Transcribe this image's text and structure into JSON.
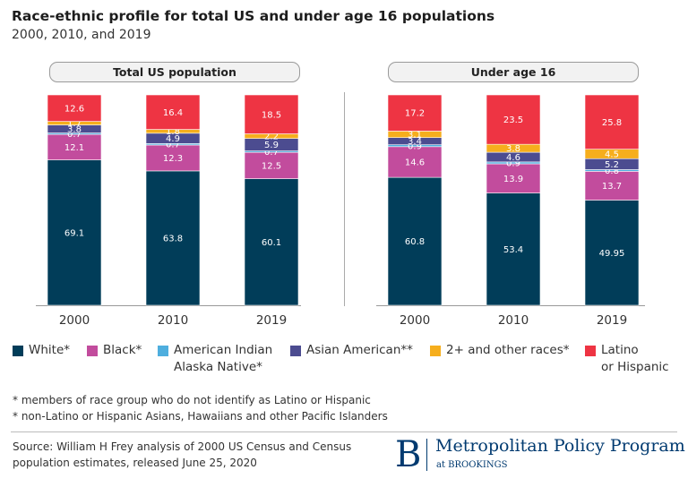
{
  "header": {
    "title": "Race-ethnic profile for total US and under age 16 populations",
    "subtitle": "2000, 2010, and 2019"
  },
  "chart_data": {
    "type": "bar",
    "stacked": true,
    "panels": [
      {
        "label": "Total US population",
        "categories": [
          "2000",
          "2010",
          "2019"
        ],
        "series": [
          {
            "name": "White*",
            "values": [
              69.1,
              63.8,
              60.1
            ]
          },
          {
            "name": "Black*",
            "values": [
              12.1,
              12.3,
              12.5
            ]
          },
          {
            "name": "American Indian Alaska Native*",
            "values": [
              0.7,
              0.7,
              0.7
            ]
          },
          {
            "name": "Asian American**",
            "values": [
              3.8,
              4.9,
              5.9
            ]
          },
          {
            "name": "2+ and other races*",
            "values": [
              1.7,
              1.8,
              2.2
            ]
          },
          {
            "name": "Latino or Hispanic",
            "values": [
              12.6,
              16.4,
              18.5
            ]
          }
        ]
      },
      {
        "label": "Under age 16",
        "categories": [
          "2000",
          "2010",
          "2019"
        ],
        "series": [
          {
            "name": "White*",
            "values": [
              60.8,
              53.4,
              49.95
            ]
          },
          {
            "name": "Black*",
            "values": [
              14.6,
              13.9,
              13.7
            ]
          },
          {
            "name": "American Indian Alaska Native*",
            "values": [
              0.9,
              0.9,
              0.8
            ]
          },
          {
            "name": "Asian American**",
            "values": [
              3.4,
              4.6,
              5.2
            ]
          },
          {
            "name": "2+ and other races*",
            "values": [
              3.1,
              3.8,
              4.5
            ]
          },
          {
            "name": "Latino or Hispanic",
            "values": [
              17.2,
              23.5,
              25.8
            ]
          }
        ]
      }
    ],
    "ylim": [
      0,
      100
    ]
  },
  "legend": {
    "items": [
      {
        "line1": "White*",
        "line2": "",
        "color": "#013d59"
      },
      {
        "line1": "Black*",
        "line2": "",
        "color": "#c24c9d"
      },
      {
        "line1": "American Indian",
        "line2": "Alaska Native*",
        "color": "#4eaede"
      },
      {
        "line1": "Asian American**",
        "line2": "",
        "color": "#4c4c90"
      },
      {
        "line1": "2+ and other races*",
        "line2": "",
        "color": "#f6ae1d"
      },
      {
        "line1": "Latino",
        "line2": "or Hispanic",
        "color": "#ee3443"
      }
    ]
  },
  "notes": {
    "note1": "* members of race group who do not identify as Latino or Hispanic",
    "note2": "* non-Latino or Hispanic Asians, Hawaiians and other Pacific Islanders"
  },
  "source": {
    "line1": "Source: William H Frey analysis of 2000 US Census and Census",
    "line2": "population estimates, released June 25, 2020"
  },
  "logo": {
    "letter": "B",
    "name": "Metropolitan Policy Program",
    "sub": "at BROOKINGS"
  }
}
